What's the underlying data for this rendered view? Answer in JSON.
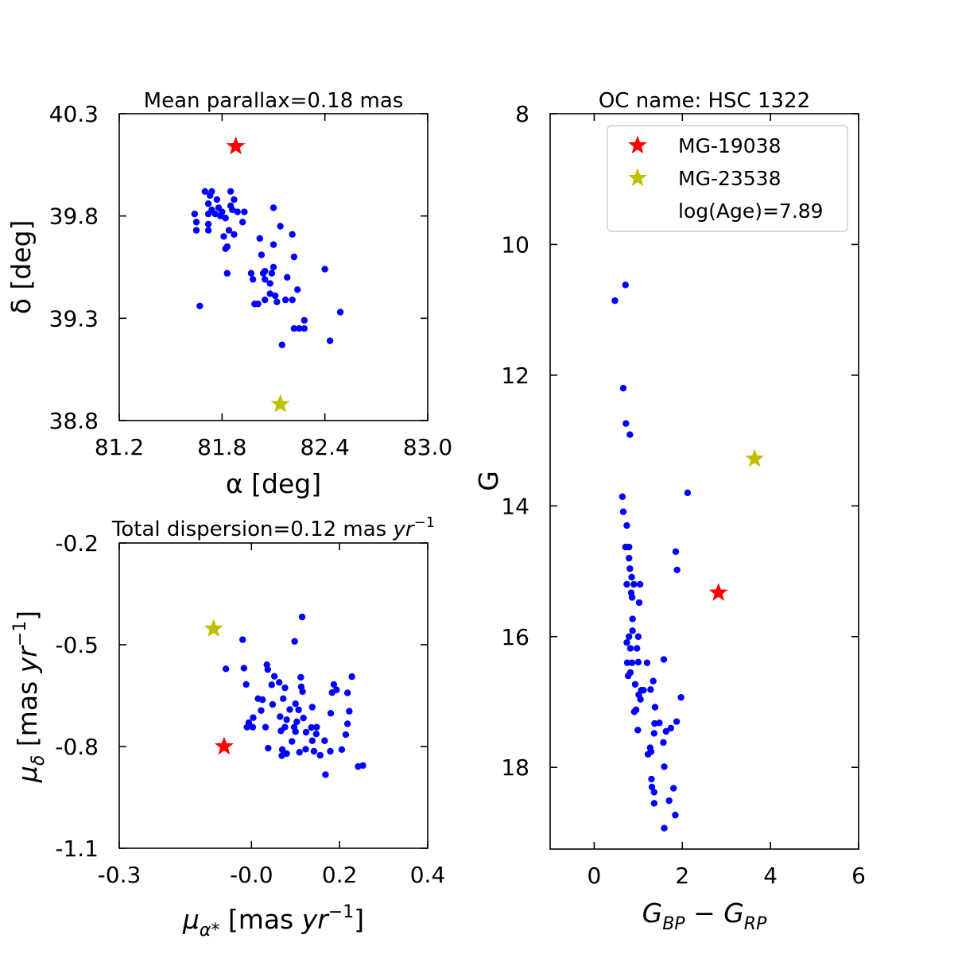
{
  "chart_data": [
    {
      "id": "sky",
      "type": "scatter",
      "title": "Mean parallax=0.18 mas",
      "xlabel": "α [deg]",
      "ylabel": "δ [deg]",
      "xlim": [
        81.2,
        83.0
      ],
      "ylim": [
        38.8,
        40.3
      ],
      "xticks": [
        81.2,
        81.8,
        82.4,
        83.0
      ],
      "xtick_labels": [
        "81.2",
        "81.8",
        "82.4",
        "83.0"
      ],
      "yticks": [
        38.8,
        39.3,
        39.8,
        40.3
      ],
      "ytick_labels": [
        "38.8",
        "39.3",
        "39.8",
        "40.3"
      ],
      "grid": false,
      "series": [
        {
          "role": "members",
          "color": "#0000ff",
          "marker": "circle",
          "points": [
            [
              81.67,
              39.36
            ],
            [
              81.64,
              39.81
            ],
            [
              81.65,
              39.77
            ],
            [
              81.65,
              39.73
            ],
            [
              81.72,
              39.86
            ],
            [
              81.72,
              39.81
            ],
            [
              81.72,
              39.76
            ],
            [
              81.72,
              39.73
            ],
            [
              81.7,
              39.92
            ],
            [
              81.73,
              39.9
            ],
            [
              81.74,
              39.92
            ],
            [
              81.74,
              39.83
            ],
            [
              81.76,
              39.81
            ],
            [
              81.77,
              39.88
            ],
            [
              81.78,
              39.84
            ],
            [
              81.79,
              39.8
            ],
            [
              81.8,
              39.82
            ],
            [
              81.82,
              39.79
            ],
            [
              81.81,
              39.7
            ],
            [
              81.82,
              39.64
            ],
            [
              81.83,
              39.65
            ],
            [
              81.84,
              39.73
            ],
            [
              81.85,
              39.92
            ],
            [
              81.85,
              39.85
            ],
            [
              81.87,
              39.88
            ],
            [
              81.86,
              39.83
            ],
            [
              81.87,
              39.71
            ],
            [
              81.89,
              39.82
            ],
            [
              81.92,
              39.77
            ],
            [
              81.93,
              39.82
            ],
            [
              81.83,
              39.52
            ],
            [
              81.97,
              39.52
            ],
            [
              81.98,
              39.49
            ],
            [
              82.05,
              39.53
            ],
            [
              82.02,
              39.69
            ],
            [
              82.03,
              39.61
            ],
            [
              82.04,
              39.52
            ],
            [
              82.05,
              39.49
            ],
            [
              82.08,
              39.47
            ],
            [
              82.09,
              39.52
            ],
            [
              82.1,
              39.55
            ],
            [
              82.1,
              39.66
            ],
            [
              82.1,
              39.84
            ],
            [
              82.14,
              39.75
            ],
            [
              82.21,
              39.71
            ],
            [
              82.22,
              39.6
            ],
            [
              82.18,
              39.5
            ],
            [
              82.24,
              39.44
            ],
            [
              81.99,
              39.37
            ],
            [
              82.01,
              39.37
            ],
            [
              82.05,
              39.39
            ],
            [
              82.08,
              39.42
            ],
            [
              82.11,
              39.41
            ],
            [
              82.12,
              39.38
            ],
            [
              82.17,
              39.39
            ],
            [
              82.21,
              39.39
            ],
            [
              82.22,
              39.25
            ],
            [
              82.25,
              39.25
            ],
            [
              82.28,
              39.25
            ],
            [
              82.28,
              39.29
            ],
            [
              82.15,
              39.17
            ],
            [
              82.4,
              39.54
            ],
            [
              82.43,
              39.19
            ],
            [
              82.49,
              39.33
            ]
          ]
        },
        {
          "role": "MG-19038",
          "color": "#ff0000",
          "marker": "star",
          "points": [
            [
              81.88,
              40.14
            ]
          ]
        },
        {
          "role": "MG-23538",
          "color": "#bfbf00",
          "marker": "star",
          "points": [
            [
              82.14,
              38.88
            ]
          ]
        }
      ]
    },
    {
      "id": "proper-motion",
      "type": "scatter",
      "title_text": "Total dispersion=0.12 mas ",
      "title_unit": "yr",
      "title_exp": "−1",
      "xlabel_text": "μ",
      "xlabel_sub": "α*",
      "xlabel_unit_text": " [mas ",
      "xlabel_unit_yr": "yr",
      "xlabel_exp": "−1",
      "xlabel_close": "]",
      "ylabel_text": "μ",
      "ylabel_sub": "δ",
      "ylabel_unit_text": " [mas ",
      "ylabel_unit_yr": "yr",
      "ylabel_exp": "−1",
      "ylabel_close": "]",
      "xlim": [
        -0.3,
        0.4
      ],
      "ylim": [
        -1.1,
        -0.2
      ],
      "xticks": [
        -0.3,
        0.0,
        0.2,
        0.4
      ],
      "xtick_labels": [
        "-0.3",
        "-0.0",
        "0.2",
        "0.4"
      ],
      "yticks": [
        -1.1,
        -0.8,
        -0.5,
        -0.2
      ],
      "ytick_labels": [
        "-1.1",
        "-0.8",
        "-0.5",
        "-0.2"
      ],
      "grid": false,
      "series": [
        {
          "role": "members",
          "color": "#0000ff",
          "marker": "circle",
          "points": [
            [
              0.115,
              -0.418
            ],
            [
              0.098,
              -0.49
            ],
            [
              -0.02,
              -0.485
            ],
            [
              -0.058,
              -0.571
            ],
            [
              -0.017,
              -0.569
            ],
            [
              0.035,
              -0.559
            ],
            [
              0.037,
              -0.573
            ],
            [
              0.052,
              -0.593
            ],
            [
              0.112,
              -0.596
            ],
            [
              0.063,
              -0.611
            ],
            [
              0.046,
              -0.618
            ],
            [
              0.076,
              -0.627
            ],
            [
              -0.012,
              -0.617
            ],
            [
              0.015,
              -0.659
            ],
            [
              0.113,
              -0.624
            ],
            [
              0.116,
              -0.638
            ],
            [
              0.025,
              -0.662
            ],
            [
              0.072,
              -0.659
            ],
            [
              0.048,
              -0.676
            ],
            [
              0.1,
              -0.674
            ],
            [
              0.138,
              -0.684
            ],
            [
              0.228,
              -0.594
            ],
            [
              0.187,
              -0.617
            ],
            [
              0.183,
              -0.641
            ],
            [
              0.193,
              -0.633
            ],
            [
              0.218,
              -0.642
            ],
            [
              0.18,
              -0.702
            ],
            [
              0.222,
              -0.696
            ],
            [
              0.022,
              -0.694
            ],
            [
              0.087,
              -0.691
            ],
            [
              0.107,
              -0.692
            ],
            [
              0.065,
              -0.712
            ],
            [
              0.08,
              -0.721
            ],
            [
              0.103,
              -0.727
            ],
            [
              0.118,
              -0.716
            ],
            [
              0.004,
              -0.715
            ],
            [
              -0.006,
              -0.73
            ],
            [
              -0.01,
              -0.743
            ],
            [
              0.003,
              -0.743
            ],
            [
              0.032,
              -0.743
            ],
            [
              0.076,
              -0.743
            ],
            [
              0.097,
              -0.743
            ],
            [
              0.136,
              -0.744
            ],
            [
              0.067,
              -0.754
            ],
            [
              0.1,
              -0.756
            ],
            [
              0.124,
              -0.758
            ],
            [
              0.148,
              -0.743
            ],
            [
              0.147,
              -0.763
            ],
            [
              0.218,
              -0.733
            ],
            [
              0.214,
              -0.765
            ],
            [
              0.092,
              -0.785
            ],
            [
              0.138,
              -0.783
            ],
            [
              0.166,
              -0.783
            ],
            [
              0.07,
              -0.809
            ],
            [
              0.123,
              -0.808
            ],
            [
              0.142,
              -0.814
            ],
            [
              0.156,
              -0.826
            ],
            [
              0.179,
              -0.814
            ],
            [
              0.205,
              -0.809
            ],
            [
              0.069,
              -0.827
            ],
            [
              0.109,
              -0.817
            ],
            [
              0.038,
              -0.805
            ],
            [
              0.08,
              -0.821
            ],
            [
              0.168,
              -0.883
            ],
            [
              0.242,
              -0.859
            ],
            [
              0.253,
              -0.856
            ]
          ]
        },
        {
          "role": "MG-19038",
          "color": "#ff0000",
          "marker": "star",
          "points": [
            [
              -0.062,
              -0.8
            ]
          ]
        },
        {
          "role": "MG-23538",
          "color": "#bfbf00",
          "marker": "star",
          "points": [
            [
              -0.086,
              -0.453
            ]
          ]
        }
      ]
    },
    {
      "id": "cmd",
      "type": "scatter",
      "title": "OC name: HSC 1322",
      "xlabel_g1": "G",
      "xlabel_s1": "BP",
      "xlabel_minus": " − ",
      "xlabel_g2": "G",
      "xlabel_s2": "RP",
      "ylabel": "G",
      "xlim": [
        -1,
        6
      ],
      "ylim": [
        19.25,
        8
      ],
      "y_inverted": true,
      "xticks": [
        0,
        2,
        4,
        6
      ],
      "xtick_labels": [
        "0",
        "2",
        "4",
        "6"
      ],
      "yticks": [
        8,
        10,
        12,
        14,
        16,
        18
      ],
      "ytick_labels": [
        "8",
        "10",
        "12",
        "14",
        "16",
        "18"
      ],
      "grid": false,
      "legend": {
        "location": "upper right",
        "entries": [
          {
            "label": "MG-19038",
            "color": "#ff0000",
            "marker": "star"
          },
          {
            "label": "MG-23538",
            "color": "#bfbf00",
            "marker": "star"
          },
          {
            "label": "log(Age)=7.89",
            "color": null,
            "marker": null
          }
        ]
      },
      "series": [
        {
          "role": "members",
          "color": "#0000ff",
          "marker": "circle",
          "points": [
            [
              0.71,
              10.62
            ],
            [
              0.47,
              10.86
            ],
            [
              0.66,
              12.2
            ],
            [
              0.72,
              12.74
            ],
            [
              0.81,
              12.91
            ],
            [
              2.12,
              13.8
            ],
            [
              0.64,
              13.86
            ],
            [
              0.66,
              14.09
            ],
            [
              0.74,
              14.3
            ],
            [
              0.71,
              14.63
            ],
            [
              0.79,
              14.63
            ],
            [
              1.85,
              14.7
            ],
            [
              0.79,
              14.8
            ],
            [
              0.81,
              14.96
            ],
            [
              1.88,
              14.98
            ],
            [
              0.85,
              15.09
            ],
            [
              1.04,
              15.2
            ],
            [
              0.74,
              15.2
            ],
            [
              0.9,
              15.2
            ],
            [
              0.84,
              15.33
            ],
            [
              0.86,
              15.4
            ],
            [
              1.02,
              15.48
            ],
            [
              0.87,
              15.73
            ],
            [
              0.87,
              15.91
            ],
            [
              0.79,
              16.0
            ],
            [
              1.0,
              16.0
            ],
            [
              0.74,
              16.09
            ],
            [
              0.82,
              16.18
            ],
            [
              0.97,
              16.18
            ],
            [
              1.58,
              16.35
            ],
            [
              0.75,
              16.4
            ],
            [
              0.86,
              16.4
            ],
            [
              1.0,
              16.39
            ],
            [
              1.2,
              16.4
            ],
            [
              0.77,
              16.6
            ],
            [
              0.82,
              16.55
            ],
            [
              1.34,
              16.68
            ],
            [
              0.93,
              16.73
            ],
            [
              1.07,
              16.82
            ],
            [
              1.12,
              16.82
            ],
            [
              1.28,
              16.81
            ],
            [
              1.01,
              16.89
            ],
            [
              1.97,
              16.93
            ],
            [
              1.05,
              16.96
            ],
            [
              1.38,
              17.08
            ],
            [
              0.95,
              17.12
            ],
            [
              0.91,
              17.15
            ],
            [
              1.87,
              17.3
            ],
            [
              1.37,
              17.33
            ],
            [
              1.48,
              17.32
            ],
            [
              1.74,
              17.4
            ],
            [
              0.99,
              17.43
            ],
            [
              1.63,
              17.45
            ],
            [
              1.36,
              17.48
            ],
            [
              1.57,
              17.62
            ],
            [
              1.27,
              17.7
            ],
            [
              1.29,
              17.76
            ],
            [
              1.22,
              17.8
            ],
            [
              1.3,
              18.18
            ],
            [
              1.31,
              18.3
            ],
            [
              1.36,
              18.38
            ],
            [
              1.59,
              17.99
            ],
            [
              1.8,
              18.32
            ],
            [
              1.36,
              18.55
            ],
            [
              1.7,
              18.51
            ],
            [
              1.84,
              18.73
            ],
            [
              1.59,
              18.93
            ]
          ]
        },
        {
          "role": "MG-19038",
          "color": "#ff0000",
          "marker": "star",
          "points": [
            [
              2.82,
              15.33
            ]
          ]
        },
        {
          "role": "MG-23538",
          "color": "#bfbf00",
          "marker": "star",
          "points": [
            [
              3.64,
              13.28
            ]
          ]
        }
      ]
    }
  ]
}
